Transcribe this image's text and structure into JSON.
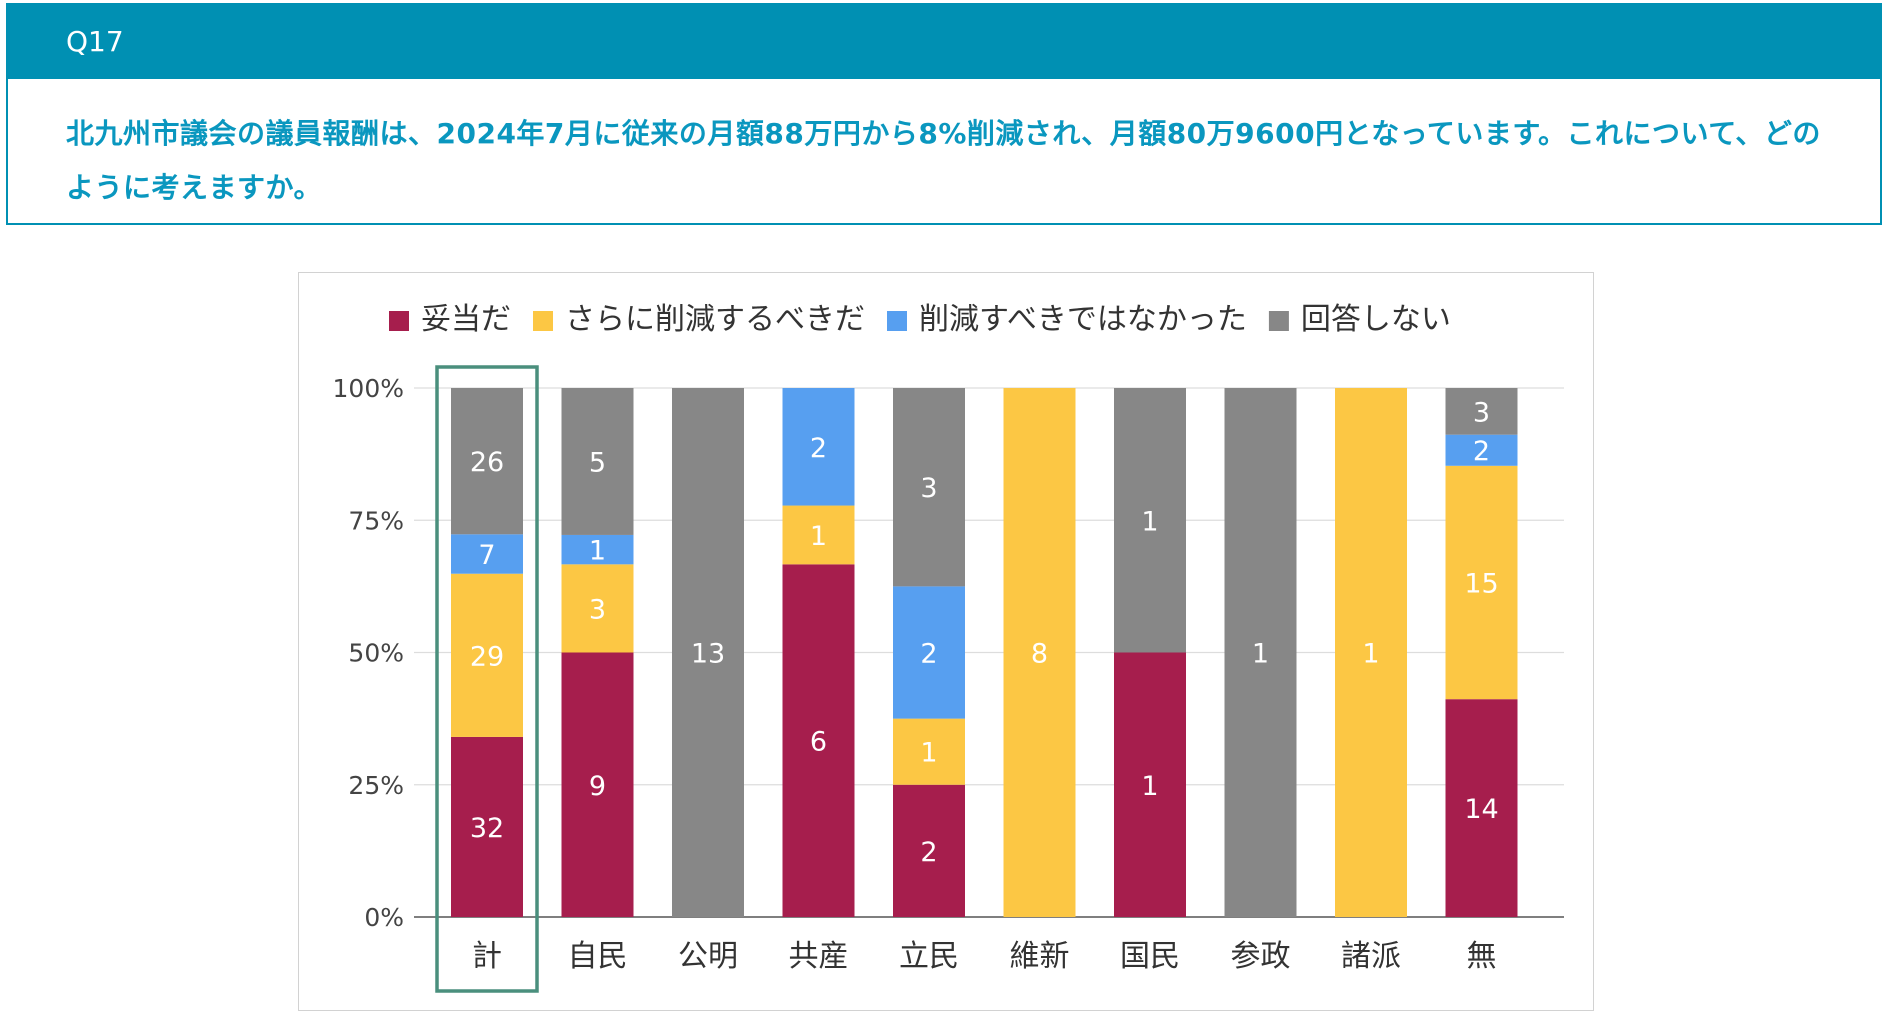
{
  "question": {
    "label": "Q17",
    "text": "北九州市議会の議員報酬は、2024年7月に従来の月額88万円から8%削減され、月額80万9600円となっています。これについて、どのように考えますか。"
  },
  "chart_data": {
    "type": "bar",
    "stacked": true,
    "normalized": true,
    "categories": [
      "計",
      "自民",
      "公明",
      "共産",
      "立民",
      "維新",
      "国民",
      "参政",
      "諸派",
      "無"
    ],
    "series": [
      {
        "name": "妥当だ",
        "color": "#a61e4d",
        "values": [
          32,
          9,
          0,
          6,
          2,
          0,
          1,
          0,
          0,
          14
        ]
      },
      {
        "name": "さらに削減するべきだ",
        "color": "#fcc744",
        "values": [
          29,
          3,
          0,
          1,
          1,
          8,
          0,
          0,
          1,
          15
        ]
      },
      {
        "name": "削減すべきではなかった",
        "color": "#579ff0",
        "values": [
          7,
          1,
          0,
          2,
          2,
          0,
          0,
          0,
          0,
          2
        ]
      },
      {
        "name": "回答しない",
        "color": "#878787",
        "values": [
          26,
          5,
          13,
          0,
          3,
          0,
          1,
          1,
          0,
          3
        ]
      }
    ],
    "yticks": [
      "0%",
      "25%",
      "50%",
      "75%",
      "100%"
    ],
    "ylim": [
      0,
      100
    ],
    "legend_position": "top",
    "highlighted_category": "計",
    "highlight_color": "#4a8f7d"
  }
}
